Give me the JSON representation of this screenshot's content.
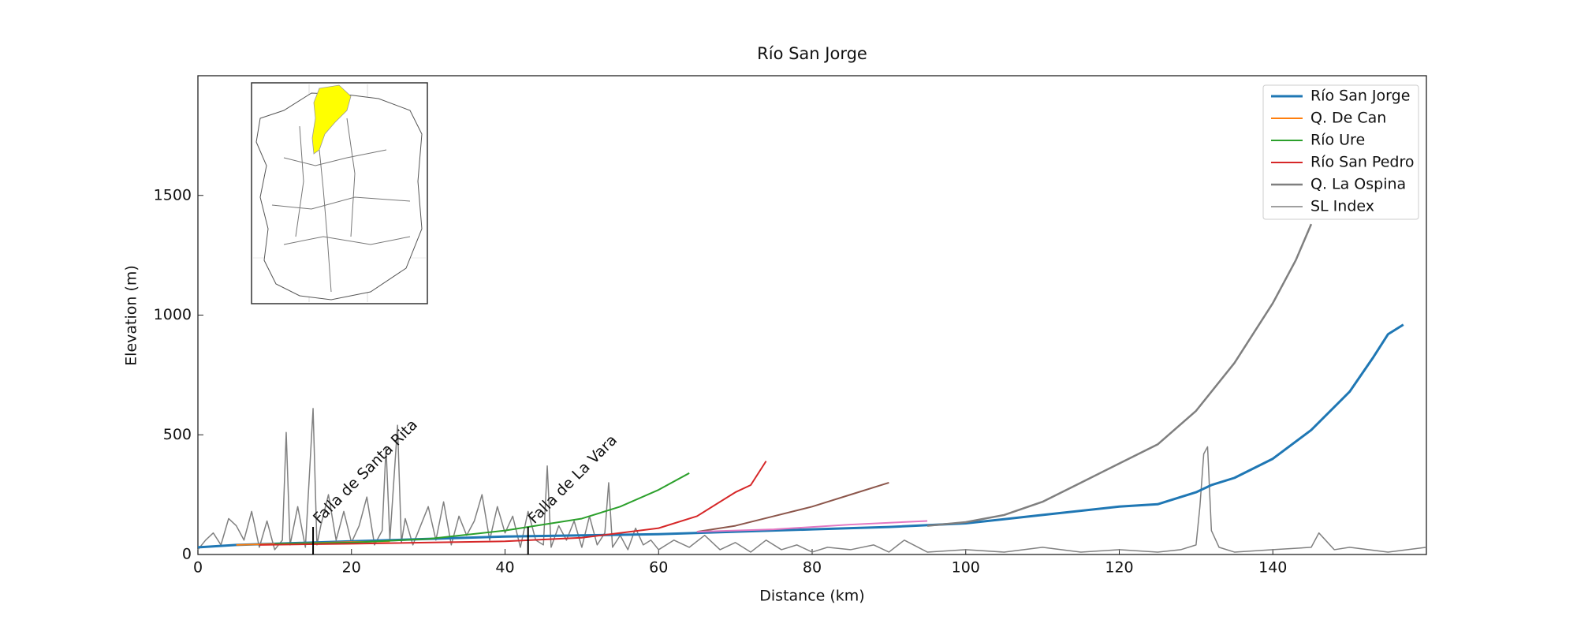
{
  "chart_data": {
    "type": "line",
    "title": "Río San Jorge",
    "xlabel": "Distance (km)",
    "ylabel": "Elevation (m)",
    "xlim": [
      0,
      160
    ],
    "ylim": [
      0,
      2000
    ],
    "xticks": [
      0,
      20,
      40,
      60,
      80,
      100,
      120,
      140
    ],
    "yticks": [
      0,
      500,
      1000,
      1500
    ],
    "legend": "upper right",
    "annotations": [
      {
        "text": "Falla de Santa Rita",
        "x": 15
      },
      {
        "text": "Falla de La Vara",
        "x": 43
      }
    ],
    "series": [
      {
        "name": "Río San Jorge",
        "color": "#1f77b4",
        "linewidth": 3,
        "x": [
          0,
          5,
          10,
          20,
          30,
          40,
          50,
          60,
          70,
          80,
          90,
          100,
          110,
          120,
          125,
          130,
          132,
          135,
          140,
          145,
          150,
          153,
          155,
          157
        ],
        "values": [
          30,
          40,
          45,
          55,
          65,
          75,
          80,
          85,
          95,
          105,
          115,
          130,
          165,
          200,
          210,
          260,
          290,
          320,
          400,
          520,
          680,
          820,
          920,
          960
        ]
      },
      {
        "name": "Q. De Can",
        "color": "#ff7f0e",
        "linewidth": 2,
        "x": [
          5,
          10,
          15,
          20,
          25
        ],
        "values": [
          40,
          44,
          48,
          52,
          55
        ]
      },
      {
        "name": "Río Ure",
        "color": "#2ca02c",
        "linewidth": 2,
        "x": [
          10,
          20,
          30,
          40,
          50,
          55,
          60,
          64
        ],
        "values": [
          45,
          50,
          65,
          100,
          150,
          200,
          270,
          340
        ]
      },
      {
        "name": "Río San Pedro",
        "color": "#d62728",
        "linewidth": 2,
        "x": [
          8,
          20,
          40,
          50,
          60,
          65,
          70,
          72,
          74
        ],
        "values": [
          40,
          45,
          55,
          70,
          110,
          160,
          260,
          290,
          390
        ]
      },
      {
        "name": "Q. La Ospina",
        "color": "#7f7f7f",
        "linewidth": 2.5,
        "x": [
          95,
          100,
          105,
          110,
          115,
          120,
          125,
          130,
          135,
          140,
          143,
          145
        ],
        "values": [
          120,
          135,
          165,
          220,
          300,
          380,
          460,
          600,
          800,
          1050,
          1230,
          1380
        ]
      },
      {
        "name": "SL Index",
        "color": "#808080",
        "linewidth": 1.5,
        "x": [
          0,
          1,
          2,
          3,
          4,
          5,
          6,
          7,
          8,
          9,
          10,
          11,
          11.5,
          12,
          13,
          14,
          15,
          15.5,
          16,
          17,
          18,
          19,
          20,
          21,
          22,
          23,
          24,
          24.5,
          25,
          26,
          26.5,
          27,
          28,
          29,
          30,
          31,
          32,
          33,
          34,
          35,
          36,
          37,
          38,
          39,
          40,
          41,
          42,
          43,
          44,
          45,
          45.5,
          46,
          47,
          48,
          49,
          50,
          51,
          52,
          53,
          53.5,
          54,
          55,
          56,
          57,
          58,
          59,
          60,
          62,
          64,
          66,
          68,
          70,
          72,
          74,
          76,
          78,
          80,
          82,
          85,
          88,
          90,
          92,
          95,
          100,
          105,
          110,
          115,
          120,
          125,
          128,
          130,
          130.5,
          131,
          131.5,
          132,
          133,
          135,
          140,
          145,
          146,
          148,
          150,
          155,
          160
        ],
        "values": [
          20,
          60,
          90,
          40,
          150,
          120,
          60,
          180,
          30,
          140,
          20,
          60,
          510,
          40,
          200,
          30,
          610,
          40,
          120,
          250,
          60,
          180,
          50,
          120,
          240,
          40,
          100,
          450,
          60,
          540,
          50,
          150,
          40,
          120,
          200,
          60,
          220,
          40,
          160,
          80,
          140,
          250,
          60,
          200,
          90,
          160,
          30,
          180,
          60,
          40,
          370,
          30,
          120,
          60,
          140,
          30,
          160,
          40,
          90,
          300,
          30,
          80,
          20,
          110,
          40,
          60,
          20,
          60,
          30,
          80,
          20,
          50,
          10,
          60,
          20,
          40,
          10,
          30,
          20,
          40,
          10,
          60,
          10,
          20,
          10,
          30,
          10,
          20,
          10,
          20,
          40,
          200,
          420,
          450,
          100,
          30,
          10,
          20,
          30,
          90,
          20,
          30,
          10,
          30
        ]
      },
      {
        "name": null,
        "color": "#8c564b",
        "linewidth": 2,
        "x": [
          65,
          70,
          75,
          80,
          85,
          90
        ],
        "values": [
          95,
          120,
          160,
          200,
          250,
          300
        ]
      },
      {
        "name": null,
        "color": "#e377c2",
        "linewidth": 2,
        "x": [
          65,
          75,
          85,
          95
        ],
        "values": [
          95,
          105,
          125,
          140
        ]
      }
    ]
  }
}
